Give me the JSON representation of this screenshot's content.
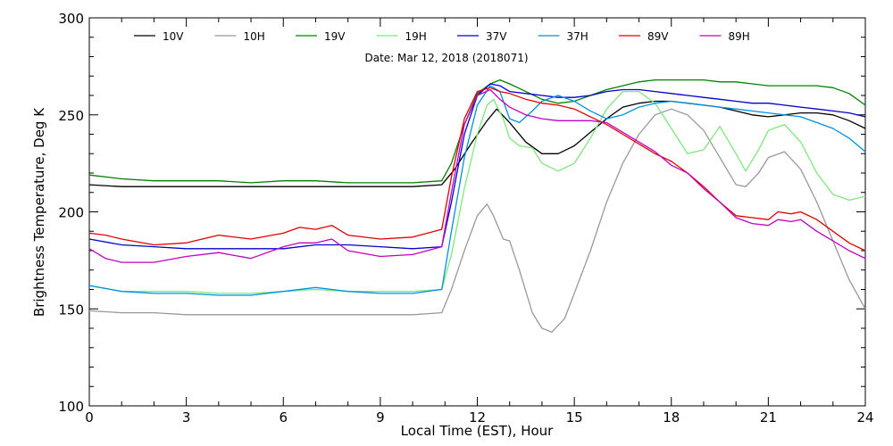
{
  "chart_data": {
    "type": "line",
    "title": "Date: Mar 12, 2018 (2018071)",
    "xlabel": "Local Time (EST), Hour",
    "ylabel": "Brightness Temperature, Deg K",
    "xlim": [
      0,
      24
    ],
    "ylim": [
      100,
      300
    ],
    "xticks": [
      0,
      3,
      6,
      9,
      12,
      15,
      18,
      21,
      24
    ],
    "yticks": [
      100,
      150,
      200,
      250,
      300
    ],
    "grid": false,
    "legend_position": "top",
    "series": [
      {
        "name": "10V",
        "color": "#000000",
        "x": [
          0,
          1,
          2,
          3,
          4,
          5,
          6,
          7,
          8,
          9,
          10,
          10.9,
          11.3,
          11.8,
          12.3,
          12.6,
          13,
          13.5,
          14,
          14.5,
          15,
          15.5,
          16,
          16.5,
          17,
          17.5,
          18,
          18.5,
          19,
          19.5,
          20,
          20.5,
          21,
          21.5,
          22,
          22.5,
          23,
          23.5,
          24
        ],
        "y": [
          214,
          213,
          213,
          213,
          213,
          213,
          213,
          213,
          213,
          213,
          213,
          214,
          222,
          235,
          247,
          253,
          246,
          236,
          230,
          230,
          234,
          241,
          248,
          254,
          256,
          257,
          257,
          256,
          255,
          254,
          252,
          250,
          249,
          250,
          251,
          251,
          250,
          247,
          243
        ]
      },
      {
        "name": "10H",
        "color": "#999999",
        "x": [
          0,
          1,
          2,
          3,
          4,
          5,
          6,
          7,
          8,
          9,
          10,
          10.9,
          11.2,
          11.6,
          12,
          12.3,
          12.5,
          12.8,
          13,
          13.3,
          13.7,
          14,
          14.3,
          14.7,
          15,
          15.5,
          16,
          16.5,
          17,
          17.5,
          18,
          18.5,
          19,
          19.5,
          20,
          20.3,
          20.7,
          21,
          21.5,
          22,
          22.5,
          23,
          23.5,
          24
        ],
        "y": [
          149,
          148,
          148,
          147,
          147,
          147,
          147,
          147,
          147,
          147,
          147,
          148,
          160,
          180,
          198,
          204,
          198,
          186,
          185,
          170,
          148,
          140,
          138,
          145,
          158,
          180,
          205,
          225,
          240,
          250,
          253,
          250,
          242,
          228,
          214,
          213,
          220,
          228,
          231,
          222,
          205,
          185,
          165,
          150
        ]
      },
      {
        "name": "19V",
        "color": "#008000",
        "x": [
          0,
          1,
          2,
          3,
          4,
          5,
          6,
          7,
          8,
          9,
          10,
          10.9,
          11.2,
          11.6,
          12,
          12.4,
          12.7,
          13,
          13.5,
          14,
          14.5,
          15,
          15.5,
          16,
          16.5,
          17,
          17.5,
          18,
          18.5,
          19,
          19.5,
          20,
          20.5,
          21,
          21.5,
          22,
          22.5,
          23,
          23.5,
          24
        ],
        "y": [
          219,
          217,
          216,
          216,
          216,
          215,
          216,
          216,
          215,
          215,
          215,
          216,
          225,
          245,
          261,
          266,
          268,
          266,
          262,
          258,
          256,
          257,
          260,
          263,
          265,
          267,
          268,
          268,
          268,
          268,
          267,
          267,
          266,
          265,
          265,
          265,
          265,
          264,
          261,
          255
        ]
      },
      {
        "name": "19H",
        "color": "#7CE87C",
        "x": [
          0,
          1,
          2,
          3,
          4,
          5,
          6,
          7,
          8,
          9,
          10,
          10.9,
          11.2,
          11.6,
          12,
          12.3,
          12.5,
          12.8,
          13,
          13.3,
          13.7,
          14,
          14.5,
          15,
          15.5,
          16,
          16.5,
          17,
          17.5,
          18,
          18.5,
          19,
          19.5,
          20,
          20.3,
          20.7,
          21,
          21.5,
          22,
          22.5,
          23,
          23.5,
          24
        ],
        "y": [
          162,
          159,
          159,
          159,
          158,
          158,
          159,
          160,
          159,
          159,
          159,
          160,
          178,
          212,
          240,
          255,
          258,
          248,
          238,
          234,
          233,
          225,
          221,
          225,
          238,
          253,
          262,
          262,
          256,
          243,
          230,
          232,
          244,
          230,
          221,
          232,
          242,
          245,
          236,
          220,
          209,
          206,
          208
        ]
      },
      {
        "name": "37V",
        "color": "#0000CC",
        "x": [
          0,
          1,
          2,
          3,
          4,
          5,
          6,
          7,
          8,
          9,
          10,
          10.9,
          11.2,
          11.6,
          12,
          12.4,
          12.7,
          13,
          13.5,
          14,
          14.5,
          15,
          15.5,
          16,
          16.5,
          17,
          17.5,
          18,
          18.5,
          19,
          19.5,
          20,
          20.5,
          21,
          21.5,
          22,
          22.5,
          23,
          23.5,
          24
        ],
        "y": [
          186,
          183,
          182,
          181,
          181,
          181,
          181,
          183,
          183,
          182,
          181,
          182,
          205,
          240,
          260,
          266,
          265,
          262,
          261,
          260,
          259,
          259,
          260,
          262,
          263,
          263,
          262,
          261,
          260,
          259,
          258,
          257,
          256,
          256,
          255,
          254,
          253,
          252,
          251,
          249
        ]
      },
      {
        "name": "37H",
        "color": "#0090E0",
        "x": [
          0,
          1,
          2,
          3,
          4,
          5,
          6,
          7,
          8,
          9,
          10,
          10.9,
          11.2,
          11.6,
          12,
          12.4,
          12.7,
          13,
          13.3,
          13.7,
          14,
          14.5,
          15,
          15.5,
          16,
          16.5,
          17,
          17.5,
          18,
          18.5,
          19,
          19.5,
          20,
          20.5,
          21,
          21.5,
          22,
          22.5,
          23,
          23.5,
          24
        ],
        "y": [
          162,
          159,
          158,
          158,
          157,
          157,
          159,
          161,
          159,
          158,
          158,
          160,
          190,
          228,
          255,
          265,
          262,
          248,
          246,
          252,
          257,
          260,
          257,
          252,
          248,
          250,
          254,
          256,
          257,
          256,
          255,
          254,
          253,
          252,
          251,
          250,
          249,
          246,
          243,
          238,
          231
        ]
      },
      {
        "name": "89V",
        "color": "#E00000",
        "x": [
          0,
          0.5,
          1,
          2,
          3,
          4,
          5,
          6,
          6.5,
          7,
          7.5,
          8,
          9,
          10,
          10.9,
          11.2,
          11.6,
          12,
          12.4,
          12.7,
          13,
          13.5,
          14,
          14.5,
          15,
          15.5,
          16,
          16.5,
          17,
          17.5,
          18,
          18.5,
          19,
          19.5,
          20,
          20.5,
          21,
          21.3,
          21.7,
          22,
          22.5,
          23,
          23.5,
          24
        ],
        "y": [
          189,
          188,
          186,
          183,
          184,
          188,
          186,
          189,
          192,
          191,
          193,
          188,
          186,
          187,
          191,
          218,
          248,
          262,
          264,
          262,
          261,
          258,
          256,
          255,
          253,
          249,
          245,
          240,
          235,
          230,
          226,
          220,
          213,
          205,
          198,
          197,
          196,
          200,
          199,
          200,
          196,
          190,
          184,
          180
        ]
      },
      {
        "name": "89H",
        "color": "#C000C0",
        "x": [
          0,
          0.5,
          1,
          2,
          3,
          4,
          5,
          6,
          6.5,
          7,
          7.5,
          8,
          9,
          10,
          10.9,
          11.2,
          11.6,
          12,
          12.4,
          12.7,
          13,
          13.5,
          14,
          14.5,
          15,
          15.5,
          16,
          16.5,
          17,
          17.5,
          18,
          18.5,
          19,
          19.5,
          20,
          20.5,
          21,
          21.3,
          21.7,
          22,
          22.5,
          23,
          23.5,
          24
        ],
        "y": [
          181,
          176,
          174,
          174,
          177,
          179,
          176,
          182,
          184,
          184,
          186,
          180,
          177,
          178,
          182,
          210,
          245,
          260,
          263,
          258,
          254,
          250,
          248,
          247,
          247,
          247,
          246,
          241,
          236,
          231,
          224,
          220,
          212,
          205,
          197,
          194,
          193,
          196,
          195,
          196,
          190,
          185,
          180,
          176
        ]
      }
    ]
  }
}
